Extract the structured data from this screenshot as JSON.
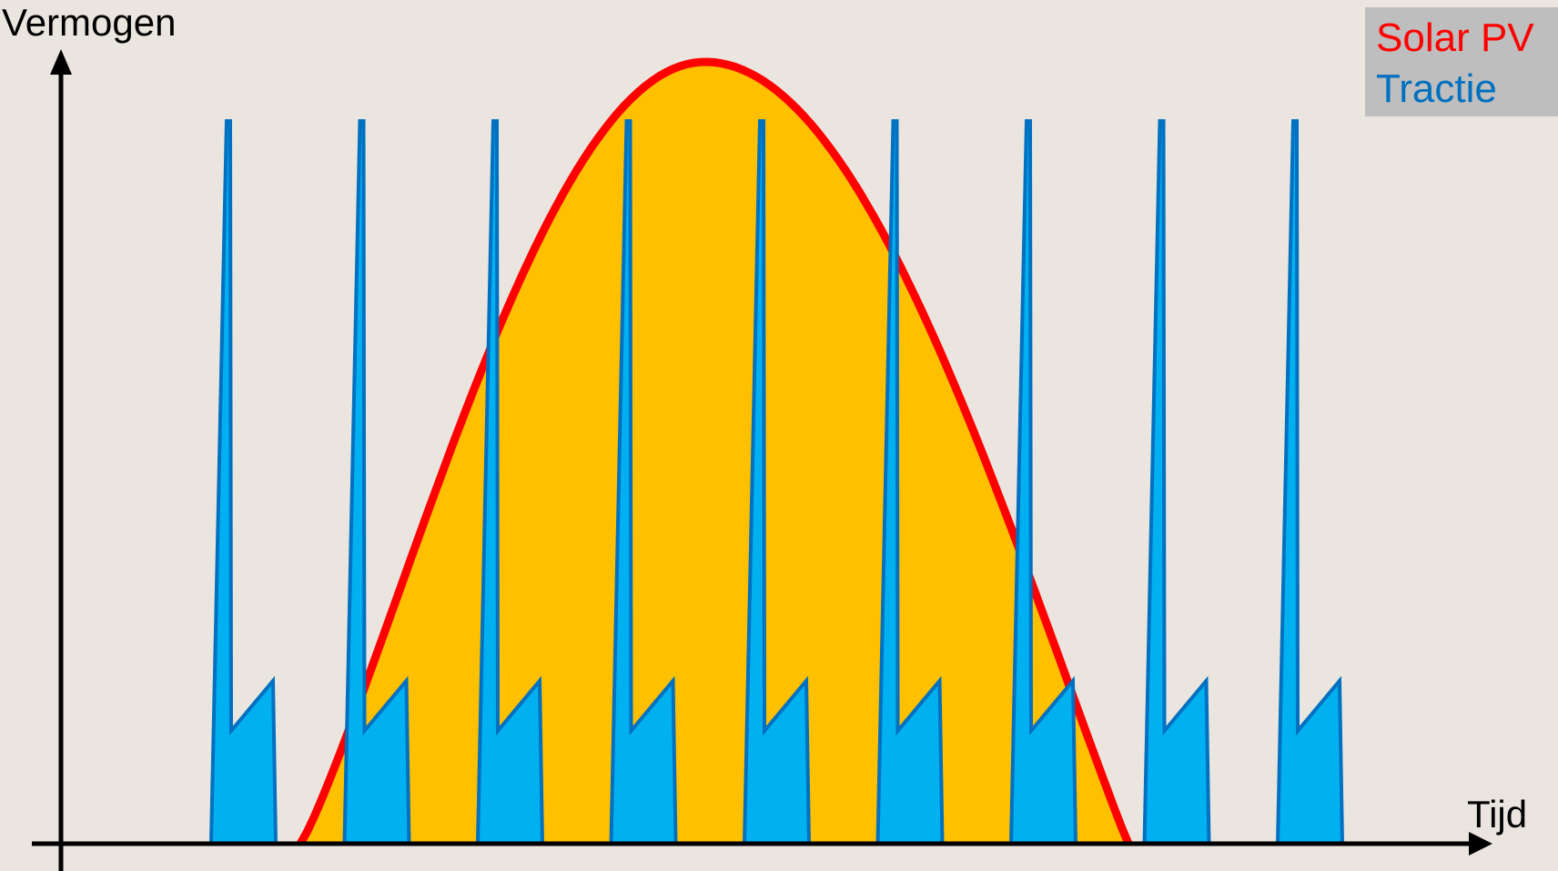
{
  "labels": {
    "y_axis": "Vermogen",
    "x_axis": "Tijd"
  },
  "legend": [
    {
      "label": "Solar PV",
      "color": "#FF0000"
    },
    {
      "label": "Tractie",
      "color": "#0070C0"
    }
  ],
  "colors": {
    "background": "#EAE6DF",
    "solar_fill": "#FFC000",
    "solar_line": "#FF0000",
    "traction_fill": "#00B0F0",
    "traction_line": "#0070C0",
    "axis": "#000000"
  },
  "diagram": {
    "solar_curve_shape": "bell",
    "traction_pulse_count": 9
  }
}
